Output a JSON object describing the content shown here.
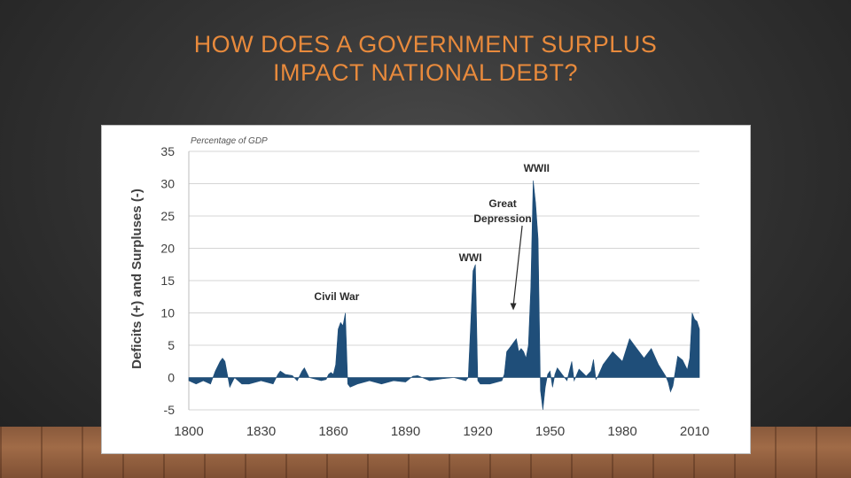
{
  "slide": {
    "title_line1": "HOW DOES A GOVERNMENT SURPLUS",
    "title_line2": "IMPACT NATIONAL DEBT?"
  },
  "chart_data": {
    "type": "area",
    "title": "Percentage of GDP",
    "xlabel": "",
    "ylabel": "Deficits (+) and Surpluses (-)",
    "xlim": [
      1800,
      2012
    ],
    "ylim": [
      -5,
      35
    ],
    "x_ticks": [
      1800,
      1830,
      1860,
      1890,
      1920,
      1950,
      1980,
      2010
    ],
    "y_ticks": [
      -5,
      0,
      5,
      10,
      15,
      20,
      25,
      30,
      35
    ],
    "grid": true,
    "fill_color": "#1f4e79",
    "annotations": [
      {
        "label": "Civil War",
        "year": 1864
      },
      {
        "label": "WWI",
        "year": 1918
      },
      {
        "label": "Great Depression",
        "year": 1934
      },
      {
        "label": "WWII",
        "year": 1944
      }
    ],
    "series": [
      {
        "x": [
          1800,
          1803,
          1806,
          1809,
          1811,
          1813,
          1814,
          1815,
          1816,
          1817,
          1819,
          1822,
          1825,
          1830,
          1835,
          1837,
          1838,
          1840,
          1843,
          1845,
          1847,
          1848,
          1850,
          1855,
          1857,
          1858,
          1859,
          1860,
          1861,
          1862,
          1863,
          1864,
          1865,
          1866,
          1867,
          1870,
          1875,
          1880,
          1885,
          1890,
          1893,
          1895,
          1900,
          1905,
          1910,
          1915,
          1916,
          1917,
          1918,
          1919,
          1920,
          1921,
          1925,
          1930,
          1931,
          1932,
          1933,
          1934,
          1935,
          1936,
          1937,
          1938,
          1939,
          1940,
          1941,
          1942,
          1943,
          1944,
          1945,
          1946,
          1947,
          1948,
          1949,
          1950,
          1951,
          1952,
          1953,
          1955,
          1957,
          1959,
          1960,
          1962,
          1965,
          1967,
          1968,
          1969,
          1970,
          1972,
          1975,
          1976,
          1980,
          1983,
          1985,
          1989,
          1992,
          1995,
          1998,
          1999,
          2000,
          2001,
          2003,
          2005,
          2007,
          2008,
          2009,
          2010,
          2011,
          2012
        ],
        "y": [
          -0.5,
          -1,
          -0.5,
          -1,
          1,
          2.5,
          3,
          2.5,
          0.5,
          -1.5,
          0,
          -1,
          -1,
          -0.5,
          -1,
          0.5,
          1,
          0.5,
          0.3,
          -0.5,
          1,
          1.5,
          0,
          -0.5,
          -0.3,
          0.5,
          0.8,
          0.5,
          2,
          7.5,
          8.5,
          8,
          10,
          -1,
          -1.5,
          -1,
          -0.5,
          -1,
          -0.5,
          -0.7,
          0.2,
          0.3,
          -0.5,
          -0.2,
          0,
          -0.5,
          0,
          8,
          16.5,
          17.5,
          -0.5,
          -1,
          -1,
          -0.5,
          0.5,
          4,
          4.5,
          5,
          5.5,
          6,
          4,
          4.5,
          4,
          3,
          5,
          14,
          30.5,
          27,
          21.5,
          -2,
          -5,
          -1.5,
          0.5,
          1,
          -1.5,
          0.5,
          1.5,
          0.5,
          -0.5,
          2.5,
          -0.5,
          1.3,
          0.2,
          1,
          2.8,
          -0.3,
          0.3,
          2,
          3.5,
          4,
          2.5,
          6,
          5,
          3,
          4.5,
          2,
          0.2,
          -0.7,
          -2.2,
          -1.3,
          3.3,
          2.7,
          1.2,
          3,
          10,
          9,
          8.7,
          7.5
        ]
      }
    ]
  }
}
